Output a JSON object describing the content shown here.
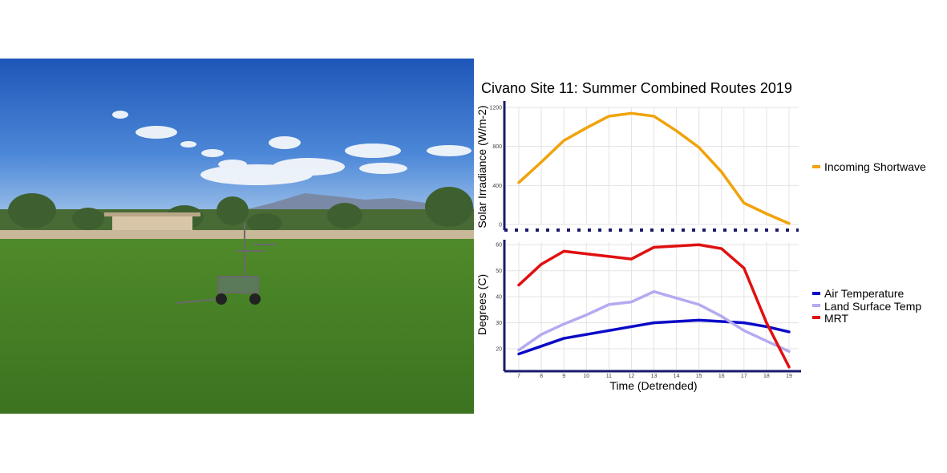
{
  "photo": {
    "description_icon": "field-weather-cart-photo"
  },
  "chart_data": [
    {
      "type": "line",
      "title": "Civano Site 11: Summer Combined Routes 2019",
      "xlabel": "",
      "ylabel": "Solar Irradiance (W/m-2)",
      "ylim": [
        0,
        1200
      ],
      "yticks": [
        0,
        400,
        800,
        1200
      ],
      "x": [
        7,
        8,
        9,
        10,
        11,
        12,
        13,
        14,
        15,
        16,
        17,
        18,
        19
      ],
      "series": [
        {
          "name": "Incoming Shortwave",
          "color": "#f0a30a",
          "values": [
            430,
            640,
            860,
            990,
            1110,
            1140,
            1110,
            960,
            790,
            540,
            220,
            110,
            10
          ]
        }
      ],
      "grid": true,
      "legend": "right"
    },
    {
      "type": "line",
      "xlabel": "Time (Detrended)",
      "ylabel": "Degrees (C)",
      "ylim": [
        12,
        61
      ],
      "yticks": [
        20,
        30,
        40,
        50,
        60
      ],
      "x": [
        7,
        8,
        9,
        10,
        11,
        12,
        13,
        14,
        15,
        16,
        17,
        18,
        19
      ],
      "xticks": [
        "7",
        "8",
        "9",
        "10",
        "11",
        "12",
        "13",
        "14",
        "15",
        "16",
        "17",
        "18",
        "19"
      ],
      "series": [
        {
          "name": "Air Temperature",
          "color": "#0a0ac8",
          "values": [
            18,
            21,
            24,
            25.5,
            27,
            28.5,
            30,
            30.5,
            31,
            30.5,
            30,
            28.5,
            26.5
          ]
        },
        {
          "name": "Land Surface Temp",
          "color": "#b4aaf0",
          "values": [
            19.5,
            25.5,
            29.5,
            33,
            37,
            38,
            42,
            39.5,
            37,
            32.5,
            27,
            23,
            19
          ]
        },
        {
          "name": "MRT",
          "color": "#e01010",
          "values": [
            44.5,
            52.5,
            57.5,
            56.5,
            55.5,
            54.5,
            59,
            59.5,
            60,
            58.5,
            51,
            30,
            13
          ]
        }
      ],
      "grid": true,
      "legend": "right"
    }
  ]
}
